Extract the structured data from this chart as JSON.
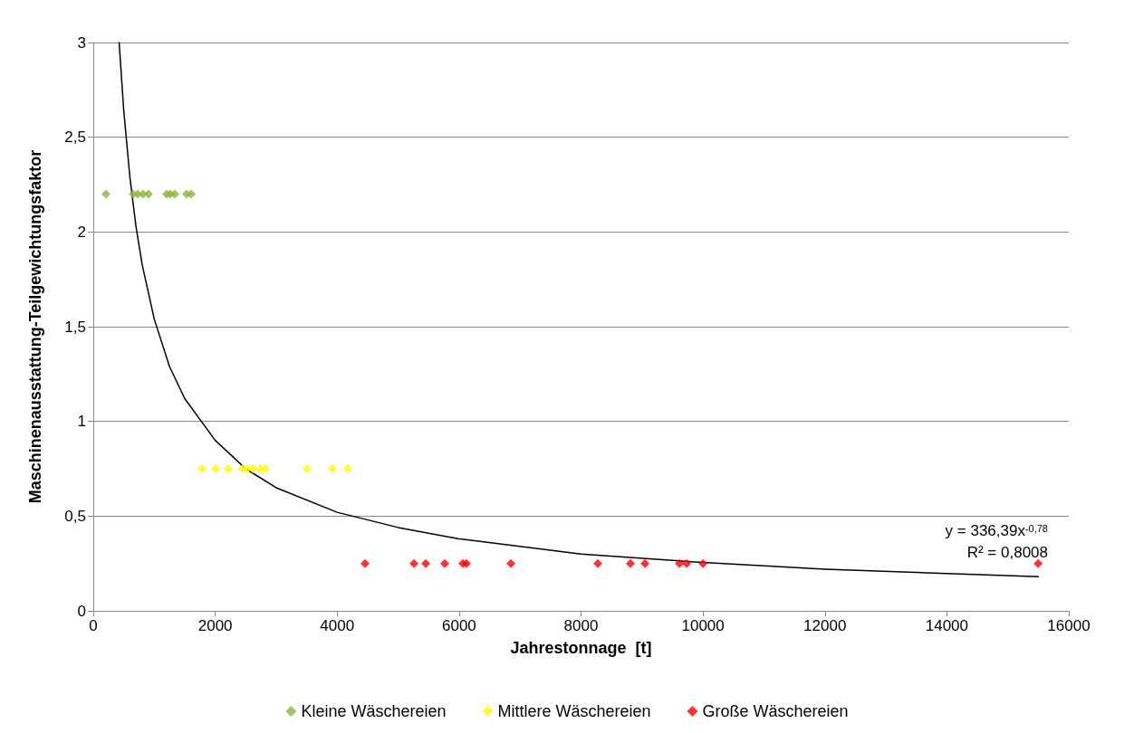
{
  "chart_data": {
    "type": "scatter",
    "xlabel": "Jahrestonnage  [t]",
    "ylabel": "Maschinenausstattung-Teilgewichtungsfaktor",
    "xlim": [
      0,
      16000
    ],
    "xticks": [
      0,
      2000,
      4000,
      6000,
      8000,
      10000,
      12000,
      14000,
      16000
    ],
    "ylim": [
      0,
      3
    ],
    "yticks": [
      0,
      {
        "value": 0.5,
        "label": "0,5"
      },
      1,
      {
        "value": 1.5,
        "label": "1,5"
      },
      2,
      {
        "value": 2.5,
        "label": "2,5"
      },
      3
    ],
    "grid": "y",
    "legend": "bottom",
    "marker": "diamond",
    "annotations": [
      "y = 336,39x$^{-0,78}$",
      "R² = 0,8008"
    ],
    "series": [
      {
        "name": "Kleine Wäschereien",
        "color": "#8cb43c",
        "x": [
          208,
          654,
          728,
          817,
          906,
          1203,
          1263,
          1337,
          1530,
          1605
        ],
        "values": [
          2.2,
          2.2,
          2.2,
          2.2,
          2.2,
          2.2,
          2.2,
          2.2,
          2.2,
          2.2
        ]
      },
      {
        "name": "Mittlere Wäschereien",
        "color": "#ffff00",
        "x": [
          1783,
          2006,
          2214,
          2452,
          2526,
          2615,
          2734,
          2823,
          3507,
          3923,
          4175
        ],
        "values": [
          0.75,
          0.75,
          0.75,
          0.75,
          0.75,
          0.75,
          0.75,
          0.75,
          0.75,
          0.75,
          0.75
        ]
      },
      {
        "name": "Große Wäschereien",
        "color": "#ff0000",
        "x": [
          4458,
          5260,
          5453,
          5765,
          6062,
          6122,
          6850,
          8276,
          8811,
          9049,
          9614,
          9733,
          10000,
          15498
        ],
        "values": [
          0.25,
          0.25,
          0.25,
          0.25,
          0.25,
          0.25,
          0.25,
          0.25,
          0.25,
          0.25,
          0.25,
          0.25,
          0.25,
          0.25
        ]
      },
      {
        "type": "line",
        "color": "#000000",
        "marker": "none",
        "x": [
          424,
          500,
          600,
          700,
          800,
          1000,
          1250,
          1500,
          2000,
          2500,
          3000,
          4000,
          5000,
          6000,
          8000,
          10000,
          12000,
          15500
        ],
        "values": [
          3,
          2.64,
          2.29,
          2.03,
          1.83,
          1.54,
          1.29,
          1.12,
          0.9,
          0.75,
          0.65,
          0.52,
          0.44,
          0.38,
          0.3,
          0.255,
          0.22,
          0.18
        ]
      }
    ]
  }
}
